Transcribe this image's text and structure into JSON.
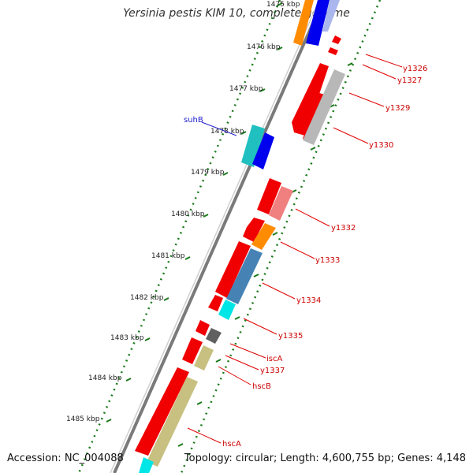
{
  "title": "Yersinia pestis KIM 10, complete genome",
  "footer": {
    "accession": "Accession: NC_004088",
    "summary": "Topology: circular; Length: 4,600,755 bp; Genes: 4,148"
  },
  "colors": {
    "backbone": "#808080",
    "tick": "#1a7a1a",
    "label_line": "#e00000",
    "label_text": "#cc0000",
    "blue_label": "#2222cc"
  },
  "scale_labels": [
    "1475 kbp",
    "1476 kbp",
    "1477 kbp",
    "1478 kbp",
    "1479 kbp",
    "1480 kbp",
    "1481 kbp",
    "1482 kbp",
    "1483 kbp",
    "1484 kbp",
    "1485 kbp"
  ],
  "gene_labels": [
    "y1326",
    "y1327",
    "y1329",
    "y1330",
    "suhB",
    "y1332",
    "y1333",
    "y1334",
    "y1335",
    "iscA",
    "y1337",
    "hscB",
    "hscA"
  ]
}
